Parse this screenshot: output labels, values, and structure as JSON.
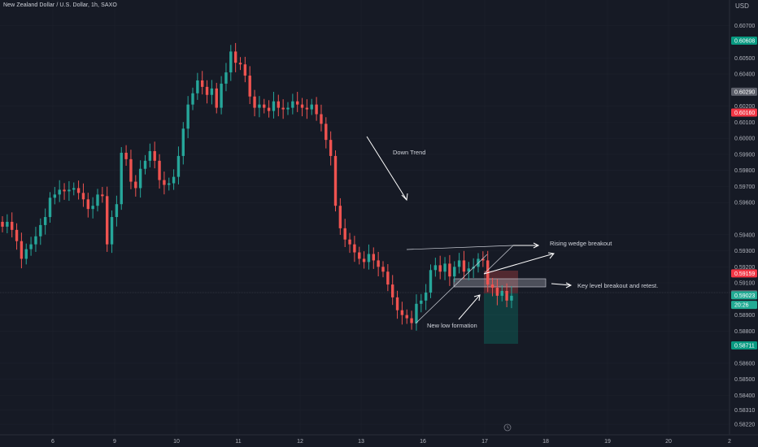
{
  "header": {
    "title": "New Zealand Dollar / U.S. Dollar, 1h, SAXO",
    "currency": "USD"
  },
  "colors": {
    "background": "#161a25",
    "up": "#26a69a",
    "down": "#ef5350",
    "grid": "#1e222d",
    "text": "#b2b5be",
    "green_tag": "#089981",
    "red_tag": "#f23645",
    "gray_tag": "#5d606b",
    "teal_tag": "#22ab94"
  },
  "chart_data": {
    "type": "candlestick",
    "x_ticks": [
      "6",
      "9",
      "10",
      "11",
      "12",
      "13",
      "16",
      "17",
      "18",
      "19",
      "20",
      "2"
    ],
    "y_ticks": [
      "0.60700",
      "0.60500",
      "0.60400",
      "0.60200",
      "0.60100",
      "0.60000",
      "0.59900",
      "0.59800",
      "0.59700",
      "0.59600",
      "0.59400",
      "0.59300",
      "0.59200",
      "0.59100",
      "0.58900",
      "0.58800",
      "0.58600",
      "0.58500",
      "0.58400",
      "0.58310",
      "0.58220"
    ],
    "ylim": [
      0.5818,
      0.6081
    ],
    "price_tags": [
      {
        "label": "0.60608",
        "value": 0.60608,
        "color": "green"
      },
      {
        "label": "0.60290",
        "value": 0.6029,
        "color": "gray"
      },
      {
        "label": "0.60160",
        "value": 0.6016,
        "color": "red"
      },
      {
        "label": "0.59159",
        "value": 0.59159,
        "color": "red"
      },
      {
        "label": "0.59029",
        "value": 0.59029,
        "color": "gray"
      },
      {
        "label": "0.59023",
        "value": 0.59023,
        "color": "teal"
      },
      {
        "label": "20:26",
        "value": 0.58963,
        "color": "teal"
      },
      {
        "label": "0.58711",
        "value": 0.58711,
        "color": "green"
      }
    ],
    "closes": [
      0.5945,
      0.5948,
      0.5943,
      0.5936,
      0.5925,
      0.5931,
      0.5934,
      0.5939,
      0.5946,
      0.5951,
      0.5963,
      0.5965,
      0.5968,
      0.5967,
      0.5968,
      0.5969,
      0.5966,
      0.5962,
      0.5956,
      0.5958,
      0.5965,
      0.5964,
      0.5934,
      0.5951,
      0.5959,
      0.5991,
      0.5987,
      0.5973,
      0.5969,
      0.5981,
      0.5986,
      0.5992,
      0.5986,
      0.5974,
      0.5971,
      0.5972,
      0.5976,
      0.5989,
      0.6006,
      0.6021,
      0.6028,
      0.6036,
      0.6032,
      0.6027,
      0.6031,
      0.6019,
      0.6034,
      0.6041,
      0.6054,
      0.6047,
      0.6046,
      0.6039,
      0.6026,
      0.6019,
      0.6021,
      0.6019,
      0.6017,
      0.6023,
      0.6019,
      0.6018,
      0.6019,
      0.6023,
      0.6021,
      0.6019,
      0.6018,
      0.6021,
      0.6015,
      0.6009,
      0.5999,
      0.5989,
      0.5958,
      0.5944,
      0.5937,
      0.5934,
      0.5929,
      0.5925,
      0.5923,
      0.5928,
      0.5924,
      0.592,
      0.5917,
      0.5909,
      0.5901,
      0.5893,
      0.589,
      0.5888,
      0.5885,
      0.5897,
      0.5899,
      0.5904,
      0.5918,
      0.5921,
      0.5917,
      0.5922,
      0.5914,
      0.592,
      0.5924,
      0.5917,
      0.5919,
      0.592,
      0.5925,
      0.5924,
      0.5909,
      0.5907,
      0.5902,
      0.5905,
      0.5899,
      0.5902
    ],
    "y_unit": "USD",
    "annotations": [
      "Down Trend",
      "Rising wedge breakout",
      "Key level breakout and retest.",
      "New low formation"
    ]
  }
}
